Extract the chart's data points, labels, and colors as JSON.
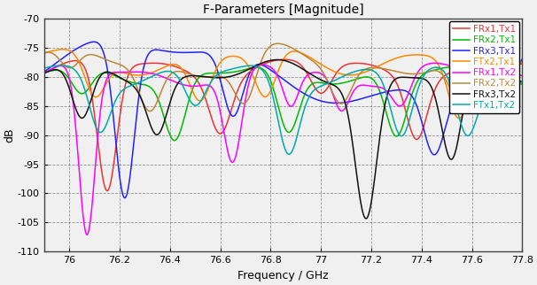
{
  "title": "F-Parameters [Magnitude]",
  "xlabel": "Frequency / GHz",
  "ylabel": "dB",
  "xlim": [
    75.9,
    77.75
  ],
  "ylim": [
    -110,
    -70
  ],
  "yticks": [
    -110,
    -105,
    -100,
    -95,
    -90,
    -85,
    -80,
    -75,
    -70
  ],
  "xticks": [
    76.0,
    76.2,
    76.4,
    76.6,
    76.8,
    77.0,
    77.2,
    77.4,
    77.6,
    77.8
  ],
  "background_color": "#f0f0f0",
  "plot_bg_color": "#f0f0f0",
  "grid_color": "#555555",
  "series": [
    {
      "label": "FRx1,Tx1",
      "color": "#ee3333"
    },
    {
      "label": "FRx2,Tx1",
      "color": "#00bb00"
    },
    {
      "label": "FRx3,Tx1",
      "color": "#2222ff"
    },
    {
      "label": "FTx2,Tx1",
      "color": "#ff8800"
    },
    {
      "label": "FRx1,Tx2",
      "color": "#ff00ff"
    },
    {
      "label": "FRx2,Tx2",
      "color": "#bb8833"
    },
    {
      "label": "FRx3,Tx2",
      "color": "#111111"
    },
    {
      "label": "FTx1,Tx2",
      "color": "#00aaaa"
    }
  ]
}
